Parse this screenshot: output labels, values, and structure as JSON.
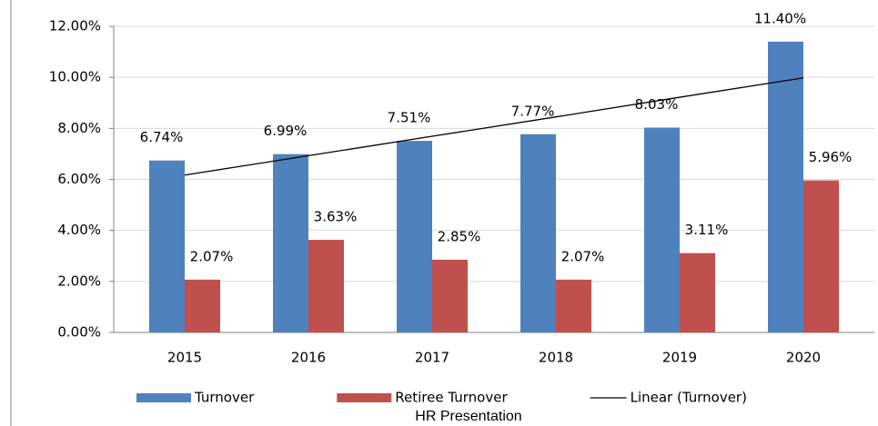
{
  "chart_data": {
    "type": "bar",
    "categories": [
      "2015",
      "2016",
      "2017",
      "2018",
      "2019",
      "2020"
    ],
    "series": [
      {
        "name": "Turnover",
        "color": "#4f81bd",
        "values": [
          6.74,
          6.99,
          7.51,
          7.77,
          8.03,
          11.4
        ],
        "value_labels": [
          "6.74%",
          "6.99%",
          "7.51%",
          "7.77%",
          "8.03%",
          "11.40%"
        ]
      },
      {
        "name": "Retiree Turnover",
        "color": "#c0504d",
        "values": [
          2.07,
          3.63,
          2.85,
          2.07,
          3.11,
          5.96
        ],
        "value_labels": [
          "2.07%",
          "3.63%",
          "2.85%",
          "2.07%",
          "3.11%",
          "5.96%"
        ]
      },
      {
        "name": "Linear (Turnover)",
        "type": "line",
        "color": "#000000",
        "values": [
          6.17,
          6.93,
          7.69,
          8.45,
          9.22,
          9.98
        ]
      }
    ],
    "ylim": [
      0,
      12
    ],
    "yticks": [
      {
        "value": 0,
        "label": "0.00%"
      },
      {
        "value": 2,
        "label": "2.00%"
      },
      {
        "value": 4,
        "label": "4.00%"
      },
      {
        "value": 6,
        "label": "6.00%"
      },
      {
        "value": 8,
        "label": "8.00%"
      },
      {
        "value": 10,
        "label": "10.00%"
      },
      {
        "value": 12,
        "label": "12.00%"
      }
    ],
    "grid": true,
    "legend": "bottom",
    "footer": "HR Presentation"
  }
}
